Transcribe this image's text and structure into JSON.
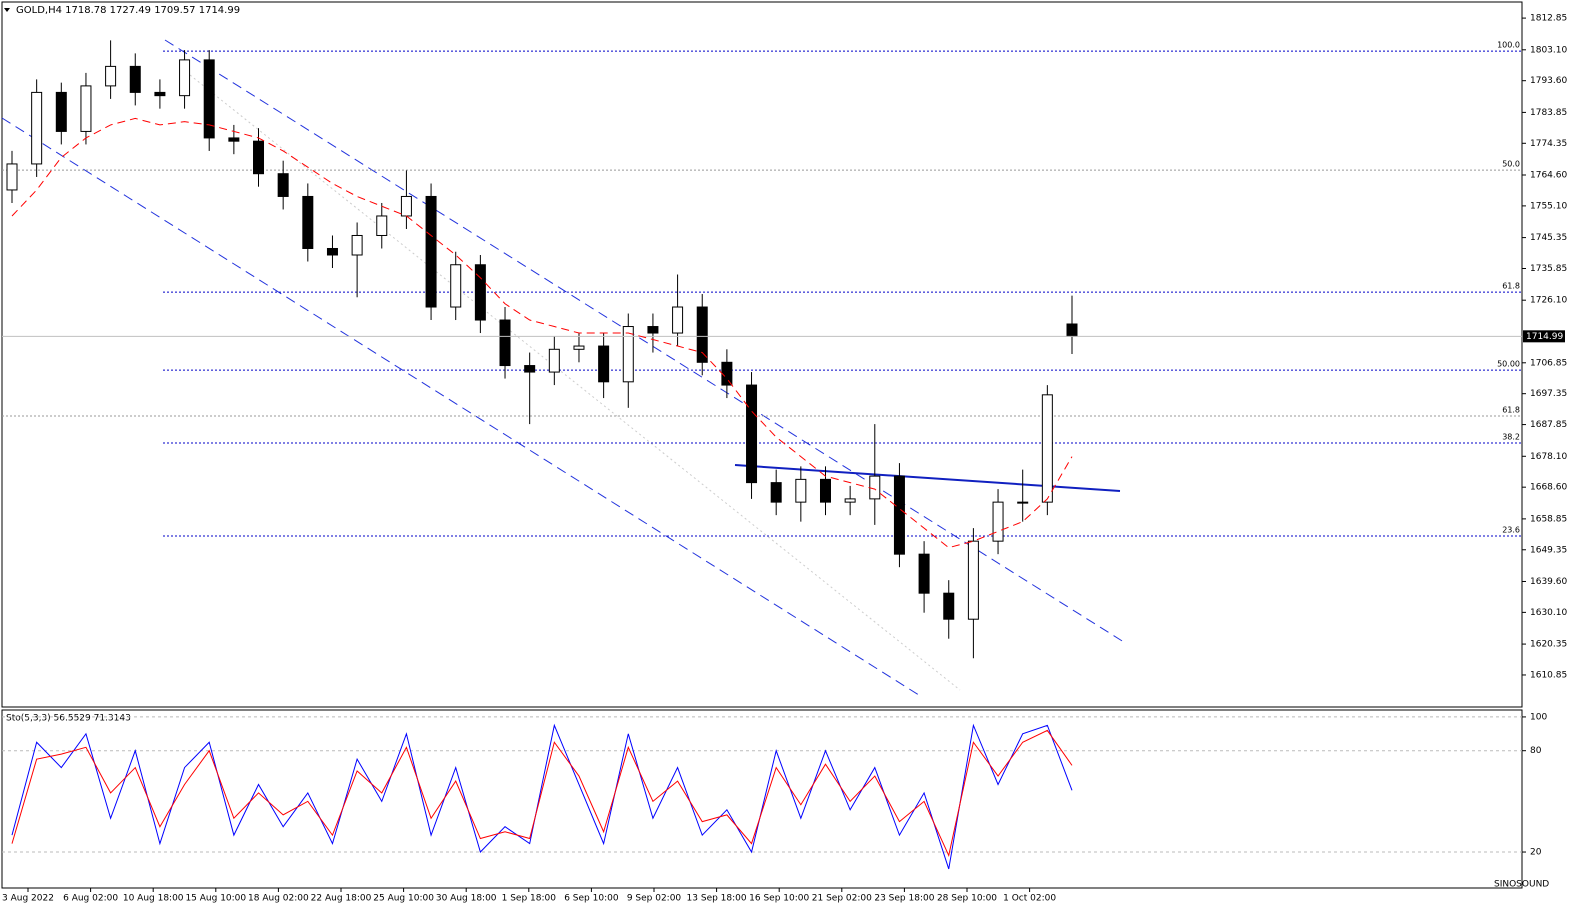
{
  "chart_data": {
    "type": "candlestick",
    "title": "GOLD,H4 1718.78 1727.49 1709.57 1714.99",
    "x_labels": [
      "3 Aug 2022",
      "6 Aug 02:00",
      "10 Aug 18:00",
      "15 Aug 10:00",
      "18 Aug 02:00",
      "22 Aug 18:00",
      "25 Aug 10:00",
      "30 Aug 18:00",
      "1 Sep 18:00",
      "6 Sep 10:00",
      "9 Sep 02:00",
      "13 Sep 18:00",
      "16 Sep 10:00",
      "21 Sep 02:00",
      "23 Sep 18:00",
      "28 Sep 10:00",
      "1 Oct 02:00"
    ],
    "ylim": [
      1601.0,
      1817.8
    ],
    "yticks": [
      1812.85,
      {
        "value": 1803.1,
        "label": "1803.10"
      },
      {
        "value": 1793.6,
        "label": "1793.60"
      },
      1783.85,
      1774.35,
      {
        "value": 1764.6,
        "label": "1764.60"
      },
      {
        "value": 1755.1,
        "label": "1755.10"
      },
      1745.35,
      1735.85,
      {
        "value": 1726.1,
        "label": "1726.10"
      },
      1706.85,
      1697.35,
      1687.85,
      {
        "value": 1678.1,
        "label": "1678.10"
      },
      {
        "value": 1668.6,
        "label": "1668.60"
      },
      1658.85,
      1649.35,
      {
        "value": 1639.6,
        "label": "1639.60"
      },
      {
        "value": 1630.1,
        "label": "1630.10"
      },
      1620.35,
      1610.85
    ],
    "candles": {
      "open": [
        1760,
        1768,
        1790,
        1778,
        1792,
        1798,
        1790,
        1789,
        1800,
        1776,
        1775,
        1765,
        1758,
        1742,
        1740,
        1746,
        1752,
        1758,
        1724,
        1737,
        1720,
        1706,
        1704,
        1711,
        1712,
        1701,
        1718,
        1716,
        1724,
        1707,
        1700,
        1670,
        1664,
        1671,
        1664,
        1665,
        1672,
        1648,
        1636,
        1628,
        1652,
        1664,
        1664,
        1718.78
      ],
      "high": [
        1772,
        1794,
        1793,
        1796,
        1806,
        1802,
        1794,
        1803,
        1803,
        1780,
        1779,
        1769,
        1762,
        1746,
        1750,
        1756,
        1766,
        1762,
        1741,
        1740,
        1724,
        1710,
        1715,
        1716,
        1716,
        1722,
        1722,
        1734,
        1728,
        1711,
        1704,
        1674,
        1675,
        1675,
        1669,
        1688,
        1676,
        1652,
        1640,
        1656,
        1668,
        1674,
        1700,
        1727.49
      ],
      "low": [
        1756,
        1764,
        1774,
        1774,
        1788,
        1786,
        1785,
        1785,
        1772,
        1771,
        1761,
        1754,
        1738,
        1736,
        1727,
        1742,
        1748,
        1720,
        1720,
        1716,
        1702,
        1688,
        1700,
        1707,
        1696,
        1693,
        1710,
        1712,
        1703,
        1696,
        1665,
        1660,
        1658,
        1660,
        1660,
        1657,
        1644,
        1630,
        1622,
        1616,
        1648,
        1658,
        1660,
        1709.57
      ],
      "close": [
        1768,
        1790,
        1778,
        1792,
        1798,
        1790,
        1789,
        1800,
        1776,
        1775,
        1765,
        1758,
        1742,
        1740,
        1746,
        1752,
        1758,
        1724,
        1737,
        1720,
        1706,
        1704,
        1711,
        1712,
        1701,
        1718,
        1716,
        1724,
        1707,
        1700,
        1670,
        1664,
        1671,
        1664,
        1665,
        1672,
        1648,
        1636,
        1628,
        1652,
        1664,
        1664,
        1697,
        1714.99
      ]
    },
    "color_up": "#000000",
    "color_down": "#000000",
    "ma": {
      "color": "#ff0000",
      "values": [
        1752,
        1760,
        1770,
        1776,
        1780,
        1782,
        1780,
        1781,
        1780,
        1778,
        1776,
        1772,
        1767,
        1762,
        1758,
        1755,
        1752,
        1746,
        1740,
        1733,
        1725,
        1720,
        1718,
        1716,
        1716,
        1716,
        1714,
        1712,
        1710,
        1702,
        1692,
        1684,
        1678,
        1672,
        1670,
        1668,
        1662,
        1656,
        1650,
        1652,
        1655,
        1658,
        1665,
        1678
      ]
    },
    "fib_levels": [
      {
        "label": "100.0",
        "value": 1802.7,
        "color": "#0000c8"
      },
      {
        "label": "50.0",
        "value": 1766.1,
        "color": "#999999"
      },
      {
        "label": "61.8",
        "value": 1728.6,
        "color": "#0000c8"
      },
      {
        "label": "50.00",
        "value": 1704.6,
        "color": "#0000c8"
      },
      {
        "label": "61.8",
        "value": 1690.5,
        "color": "#999999"
      },
      {
        "label": "38.2",
        "value": 1682.2,
        "color": "#0000c8"
      },
      {
        "label": "23.6",
        "value": 1653.6,
        "color": "#0000c8"
      }
    ],
    "stochastic": {
      "label": "Sto(5,3,3) 56.5529 71.3143",
      "ylim": [
        -1.3,
        104.1
      ],
      "yticks": [
        100,
        80,
        20
      ],
      "series": [
        {
          "color": "#0000ff",
          "values": [
            30,
            85,
            70,
            90,
            40,
            80,
            25,
            70,
            85,
            30,
            60,
            35,
            55,
            25,
            75,
            50,
            90,
            30,
            70,
            20,
            35,
            25,
            95,
            60,
            25,
            90,
            40,
            70,
            30,
            45,
            20,
            80,
            40,
            80,
            45,
            70,
            30,
            55,
            10,
            95,
            60,
            90,
            95,
            56.5529
          ]
        },
        {
          "color": "#ff0000",
          "values": [
            25,
            75,
            78,
            82,
            55,
            70,
            35,
            60,
            80,
            40,
            55,
            42,
            50,
            30,
            68,
            55,
            82,
            40,
            62,
            28,
            32,
            28,
            85,
            65,
            32,
            82,
            50,
            62,
            38,
            42,
            25,
            70,
            48,
            72,
            50,
            65,
            38,
            50,
            18,
            85,
            65,
            85,
            92,
            71.3143
          ]
        }
      ]
    },
    "watermark": "SINOSOUND"
  }
}
